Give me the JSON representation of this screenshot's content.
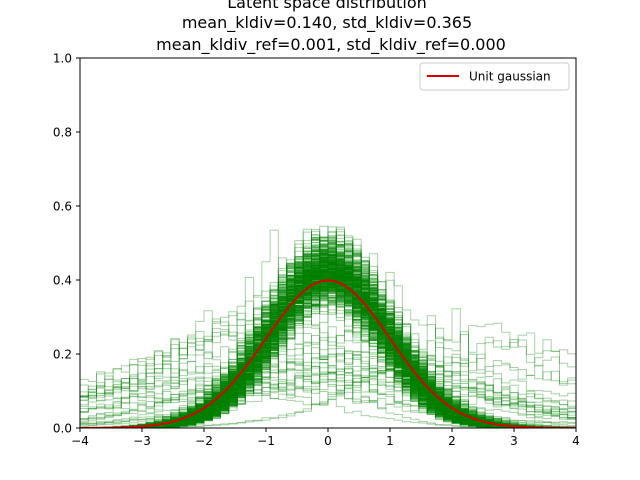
{
  "chart_data": {
    "type": "line",
    "title_lines": [
      "Latent space distribution",
      "mean_kldiv=0.140, std_kldiv=0.365",
      "mean_kldiv_ref=0.001, std_kldiv_ref=0.000"
    ],
    "xlim": [
      -4,
      4
    ],
    "ylim": [
      0,
      1.0
    ],
    "xticks": [
      -4,
      -3,
      -2,
      -1,
      0,
      1,
      2,
      3,
      4
    ],
    "yticks": [
      0.0,
      0.2,
      0.4,
      0.6,
      0.8,
      1.0
    ],
    "xtick_labels": [
      "−4",
      "−3",
      "−2",
      "−1",
      "0",
      "1",
      "2",
      "3",
      "4"
    ],
    "ytick_labels": [
      "0.0",
      "0.2",
      "0.4",
      "0.6",
      "0.8",
      "1.0"
    ],
    "legend": {
      "placement": "top-right",
      "entries": [
        {
          "label": "Unit gaussian",
          "color": "#dd0000"
        }
      ]
    },
    "series": [
      {
        "name": "Unit gaussian",
        "color": "#dd0000",
        "function": "standard normal pdf",
        "x": [
          -4,
          -3.5,
          -3,
          -2.5,
          -2,
          -1.5,
          -1,
          -0.5,
          0,
          0.5,
          1,
          1.5,
          2,
          2.5,
          3,
          3.5,
          4
        ],
        "values": [
          0.0001,
          0.0009,
          0.0044,
          0.0175,
          0.054,
          0.1295,
          0.242,
          0.3521,
          0.3989,
          0.3521,
          0.242,
          0.1295,
          0.054,
          0.0175,
          0.0044,
          0.0009,
          0.0001
        ]
      }
    ],
    "histogram_overlay": {
      "description_color": "#008000",
      "style": "step histograms of latent dimensions",
      "x_range": [
        -4,
        4
      ],
      "peak_range": [
        0.35,
        0.5
      ],
      "count_estimate": "many"
    }
  }
}
